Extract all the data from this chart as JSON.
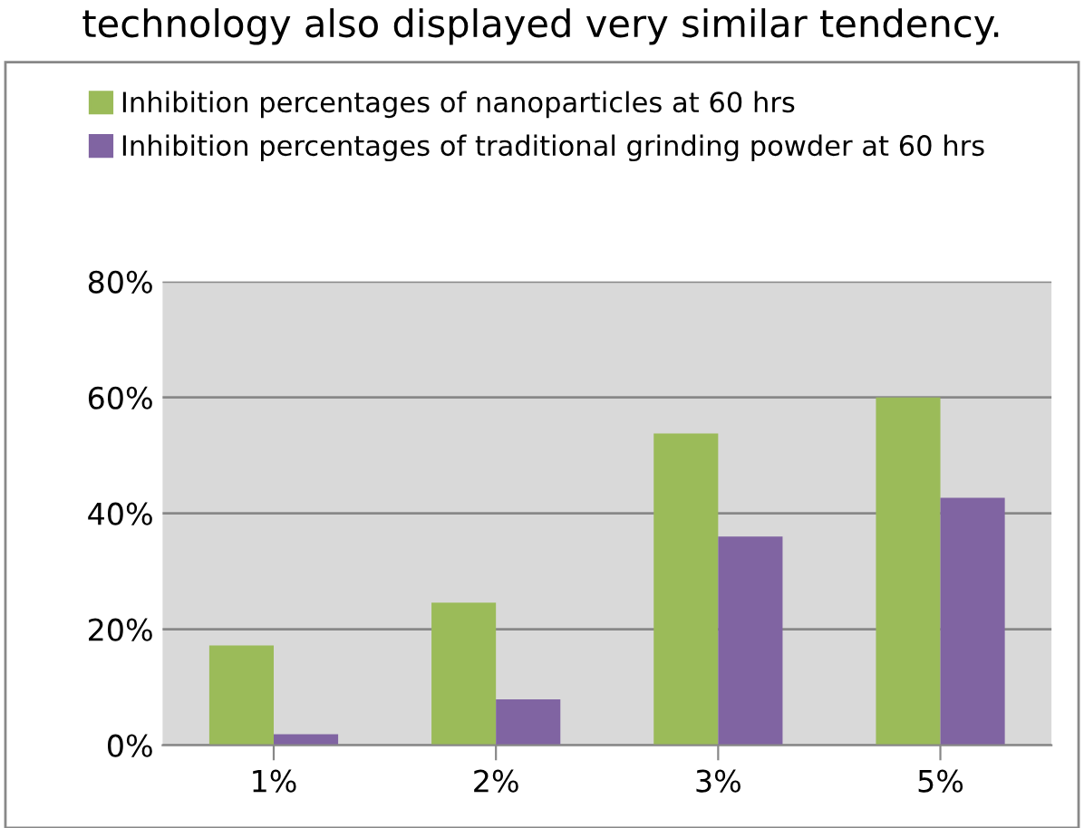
{
  "chart_data": {
    "type": "bar",
    "annotations": [
      "technology also displayed very similar tendency."
    ],
    "categories": [
      "1%",
      "2%",
      "3%",
      "5%"
    ],
    "series": [
      {
        "name": "Inhibition percentages of nanoparticles at 60 hrs",
        "color": "#9bbb59",
        "values": [
          17.2,
          24.6,
          53.8,
          60
        ]
      },
      {
        "name": "Inhibition percentages of traditional grinding powder at 60 hrs",
        "color": "#8064a2",
        "values": [
          1.9,
          7.9,
          36,
          42.7
        ]
      }
    ],
    "ylim": [
      0,
      80
    ],
    "yticks": [
      {
        "value": 0,
        "label": "0%"
      },
      {
        "value": 20,
        "label": "20%"
      },
      {
        "value": 40,
        "label": "40%"
      },
      {
        "value": 60,
        "label": "60%"
      },
      {
        "value": 80,
        "label": "80%"
      }
    ],
    "grid": "y",
    "legend": "top"
  }
}
